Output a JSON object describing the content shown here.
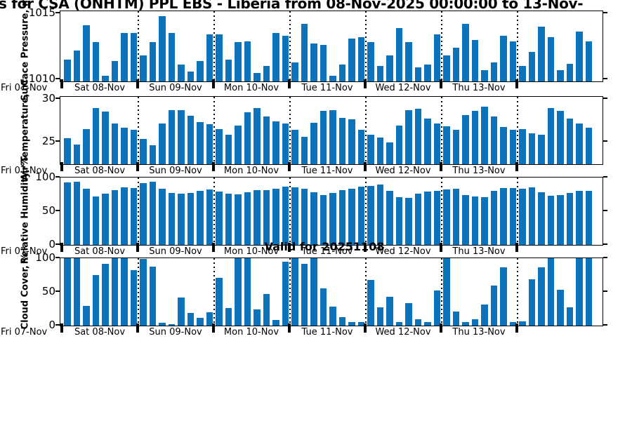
{
  "title": "s for CSA (ONHTM) PPL EBS  - Liberia from 08-Nov-2025 00:00:00 to 13-Nov-",
  "annotation": "Valid for 20251108",
  "colors": {
    "bar": "#0B73B9",
    "axis": "#000000",
    "background": "#FFFFFF"
  },
  "x_axis": {
    "left_label": "Fri 07-Nov",
    "day_labels": [
      "Sat 08-Nov",
      "Sun 09-Nov",
      "Mon 10-Nov",
      "Tue 11-Nov",
      "Wed 12-Nov",
      "Thu 13-Nov"
    ],
    "day_sections": 7,
    "bars_per_day": 8
  },
  "chart_data": [
    {
      "id": "surface-pressure",
      "type": "bar",
      "ylabel": "Surface Pressure, mb",
      "ylim": [
        1009.85,
        1015.15
      ],
      "yticks": [
        {
          "value": 1015,
          "label": "1015"
        },
        {
          "value": 1010,
          "label": "1010"
        }
      ],
      "values": [
        1011.5,
        1012.2,
        1014.1,
        1012.8,
        1010.3,
        1011.4,
        1013.5,
        1013.5,
        1011.8,
        1012.8,
        1014.8,
        1013.5,
        1011.1,
        1010.6,
        1011.4,
        1013.4,
        1013.4,
        1011.5,
        1012.8,
        1012.9,
        1010.5,
        1011.0,
        1013.5,
        1013.3,
        1011.3,
        1014.2,
        1012.7,
        1012.6,
        1010.3,
        1011.1,
        1013.1,
        1013.2,
        1012.8,
        1011.0,
        1011.8,
        1013.9,
        1012.8,
        1010.9,
        1011.1,
        1013.4,
        1011.8,
        1012.4,
        1014.2,
        1013.0,
        1010.7,
        1011.3,
        1013.3,
        1012.9,
        1011.0,
        1012.1,
        1014.0,
        1013.2,
        1010.7,
        1011.2,
        1013.6,
        1012.9
      ]
    },
    {
      "id": "air-temperature",
      "type": "bar",
      "ylabel": "Air Temperature, °C",
      "ylim": [
        22.4,
        30.2
      ],
      "yticks": [
        {
          "value": 30,
          "label": "30"
        },
        {
          "value": 25,
          "label": "25"
        }
      ],
      "values": [
        25.4,
        24.7,
        26.5,
        28.9,
        28.5,
        27.1,
        26.6,
        26.4,
        25.3,
        24.6,
        27.1,
        28.7,
        28.7,
        28.0,
        27.3,
        27.0,
        26.5,
        25.8,
        26.9,
        28.4,
        28.9,
        27.9,
        27.4,
        27.1,
        26.4,
        25.6,
        27.2,
        28.6,
        28.7,
        27.8,
        27.6,
        26.4,
        25.8,
        25.5,
        24.9,
        26.9,
        28.7,
        28.8,
        27.7,
        27.1,
        26.8,
        26.4,
        28.1,
        28.6,
        29.1,
        27.9,
        26.7,
        26.4,
        26.5,
        26.0,
        25.8,
        28.9,
        28.6,
        27.7,
        27.1,
        26.6
      ]
    },
    {
      "id": "relative-humidity",
      "type": "bar",
      "ylabel": "Relative Humidity, %",
      "ylim": [
        0,
        100
      ],
      "yticks": [
        {
          "value": 100,
          "label": "100"
        },
        {
          "value": 50,
          "label": "50"
        },
        {
          "value": 0,
          "label": "0"
        }
      ],
      "values": [
        93,
        94,
        83,
        72,
        76,
        81,
        85,
        84,
        92,
        94,
        83,
        77,
        76,
        77,
        80,
        82,
        79,
        76,
        75,
        78,
        81,
        81,
        83,
        86,
        85,
        83,
        78,
        74,
        77,
        81,
        83,
        87,
        88,
        90,
        80,
        71,
        70,
        76,
        79,
        80,
        82,
        83,
        74,
        72,
        71,
        80,
        84,
        84,
        83,
        85,
        78,
        73,
        74,
        77,
        80,
        80
      ]
    },
    {
      "id": "cloud-cover",
      "type": "bar",
      "ylabel": "Cloud Cover, %",
      "ylim": [
        0,
        100
      ],
      "yticks": [
        {
          "value": 100,
          "label": "100"
        },
        {
          "value": 50,
          "label": "50"
        },
        {
          "value": 0,
          "label": "0"
        }
      ],
      "values": [
        100,
        100,
        29,
        75,
        92,
        100,
        100,
        82,
        99,
        88,
        4,
        2,
        42,
        19,
        11,
        20,
        71,
        26,
        100,
        100,
        24,
        47,
        8,
        95,
        100,
        92,
        100,
        55,
        28,
        13,
        5,
        5,
        68,
        27,
        43,
        5,
        33,
        9,
        5,
        52,
        100,
        21,
        5,
        9,
        31,
        59,
        86,
        5,
        6,
        69,
        86,
        100,
        53,
        27,
        100,
        100
      ]
    }
  ]
}
